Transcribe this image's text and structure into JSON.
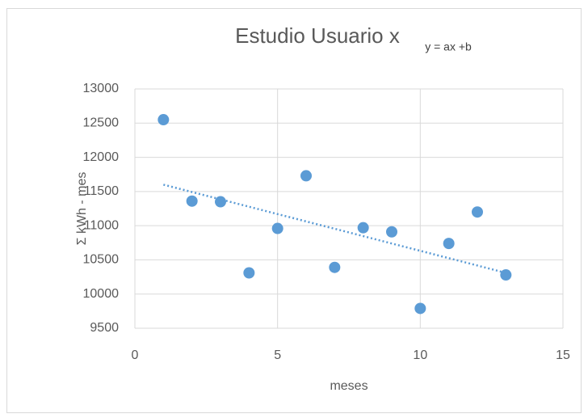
{
  "chart_data": {
    "type": "scatter",
    "title": "Estudio Usuario x",
    "annotation": "y = ax +b",
    "x_label": "meses",
    "y_label": "Σ kWh - mes",
    "series": [
      {
        "name": "kWh",
        "color": "#5b9bd5",
        "x": [
          1,
          2,
          3,
          4,
          5,
          6,
          7,
          8,
          9,
          10,
          11,
          12,
          13
        ],
        "values": [
          12550,
          11360,
          11350,
          10310,
          10960,
          11730,
          10390,
          10970,
          10910,
          9790,
          10740,
          11200,
          10280
        ]
      }
    ],
    "trendline": {
      "color": "#5b9bd5",
      "x": [
        1,
        13
      ],
      "values": [
        11600,
        10310
      ]
    },
    "xlim": [
      0,
      15
    ],
    "xticks": [
      0,
      5,
      10,
      15
    ],
    "ylim": [
      9500,
      13000
    ],
    "yticks": [
      9500,
      10000,
      10500,
      11000,
      11500,
      12000,
      12500,
      13000
    ],
    "grid": true
  }
}
